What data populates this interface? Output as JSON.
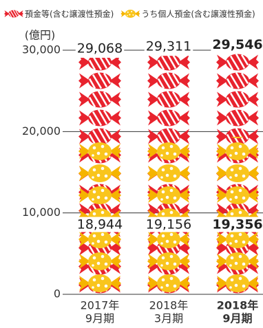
{
  "chart_data": {
    "type": "pictogram",
    "unit_label": "(億円)",
    "categories": [
      [
        "2017年",
        "9月期"
      ],
      [
        "2018年",
        "3月期"
      ],
      [
        "2018年",
        "9月期"
      ]
    ],
    "series": [
      {
        "name": "預金等(含む譲渡性預金)",
        "color": "#e8232e",
        "values": [
          29068,
          29311,
          29546
        ],
        "value_labels": [
          "29,068",
          "29,311",
          "29,546"
        ]
      },
      {
        "name": "うち個人預金(含む譲渡性預金)",
        "color": "#f7c21a",
        "values": [
          18944,
          19156,
          19356
        ],
        "value_labels": [
          "18,944",
          "19,156",
          "19,356"
        ]
      }
    ],
    "ylim": [
      0,
      30000
    ],
    "yticks": [
      {
        "value": 0,
        "label": "0"
      },
      {
        "value": 10000,
        "label": "10,000"
      },
      {
        "value": 20000,
        "label": "20,000"
      },
      {
        "value": 30000,
        "label": "30,000"
      }
    ],
    "grid": true
  }
}
